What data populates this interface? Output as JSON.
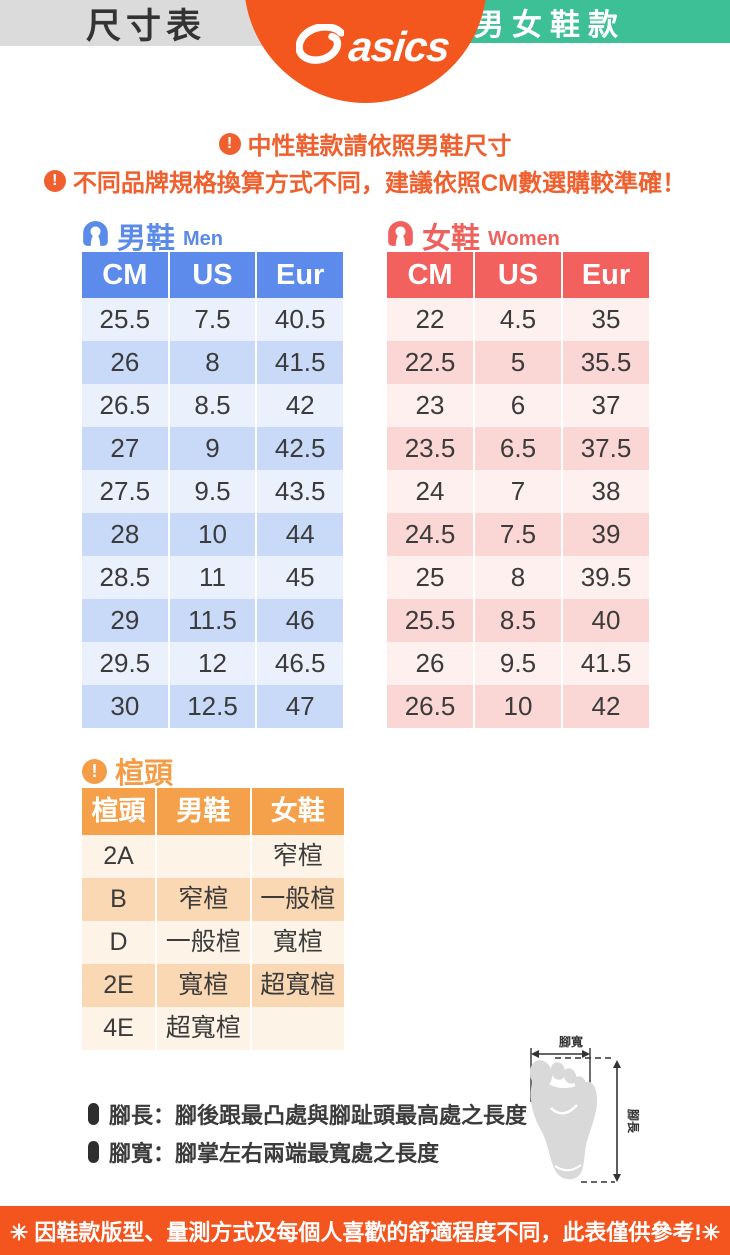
{
  "header": {
    "size_chart_label": "尺寸表",
    "brand": "asics",
    "category_label": "男女鞋款"
  },
  "notices": [
    {
      "icon": "exclamation-circle-icon",
      "text": "中性鞋款請依照男鞋尺寸"
    },
    {
      "icon": "exclamation-circle-icon",
      "text": "不同品牌規格換算方式不同，建議依照CM數選購較準確！"
    }
  ],
  "men": {
    "icon": "person-icon",
    "title": "男鞋",
    "subtitle": "Men",
    "table": {
      "headers": [
        "CM",
        "US",
        "Eur"
      ],
      "rows": [
        [
          "25.5",
          "7.5",
          "40.5"
        ],
        [
          "26",
          "8",
          "41.5"
        ],
        [
          "26.5",
          "8.5",
          "42"
        ],
        [
          "27",
          "9",
          "42.5"
        ],
        [
          "27.5",
          "9.5",
          "43.5"
        ],
        [
          "28",
          "10",
          "44"
        ],
        [
          "28.5",
          "11",
          "45"
        ],
        [
          "29",
          "11.5",
          "46"
        ],
        [
          "29.5",
          "12",
          "46.5"
        ],
        [
          "30",
          "12.5",
          "47"
        ]
      ]
    }
  },
  "women": {
    "icon": "person-icon",
    "title": "女鞋",
    "subtitle": "Women",
    "table": {
      "headers": [
        "CM",
        "US",
        "Eur"
      ],
      "rows": [
        [
          "22",
          "4.5",
          "35"
        ],
        [
          "22.5",
          "5",
          "35.5"
        ],
        [
          "23",
          "6",
          "37"
        ],
        [
          "23.5",
          "6.5",
          "37.5"
        ],
        [
          "24",
          "7",
          "38"
        ],
        [
          "24.5",
          "7.5",
          "39"
        ],
        [
          "25",
          "8",
          "39.5"
        ],
        [
          "25.5",
          "8.5",
          "40"
        ],
        [
          "26",
          "9.5",
          "41.5"
        ],
        [
          "26.5",
          "10",
          "42"
        ]
      ]
    }
  },
  "last_width": {
    "icon": "exclamation-circle-icon",
    "title": "楦頭",
    "table": {
      "headers": [
        "楦頭",
        "男鞋",
        "女鞋"
      ],
      "rows": [
        [
          "2A",
          "",
          "窄楦"
        ],
        [
          "B",
          "窄楦",
          "一般楦"
        ],
        [
          "D",
          "一般楦",
          "寬楦"
        ],
        [
          "2E",
          "寬楦",
          "超寬楦"
        ],
        [
          "4E",
          "超寬楦",
          ""
        ]
      ]
    }
  },
  "measure_notes": [
    {
      "text": "腳長：腳後跟最凸處與腳趾頭最高處之長度"
    },
    {
      "text": "腳寬：腳掌左右兩端最寬處之長度"
    }
  ],
  "foot_diagram": {
    "width_label": "腳寬",
    "length_label": "腳長"
  },
  "footer": {
    "text": "✳ 因鞋款版型、量測方式及每個人喜歡的舒適程度不同，此表僅供參考!✳"
  },
  "colors": {
    "orange": "#f4571e",
    "orange_light": "#f5a04b",
    "blue": "#5b8be9",
    "coral": "#f0615e",
    "teal": "#3ec096",
    "notice_orange": "#f0602e"
  }
}
